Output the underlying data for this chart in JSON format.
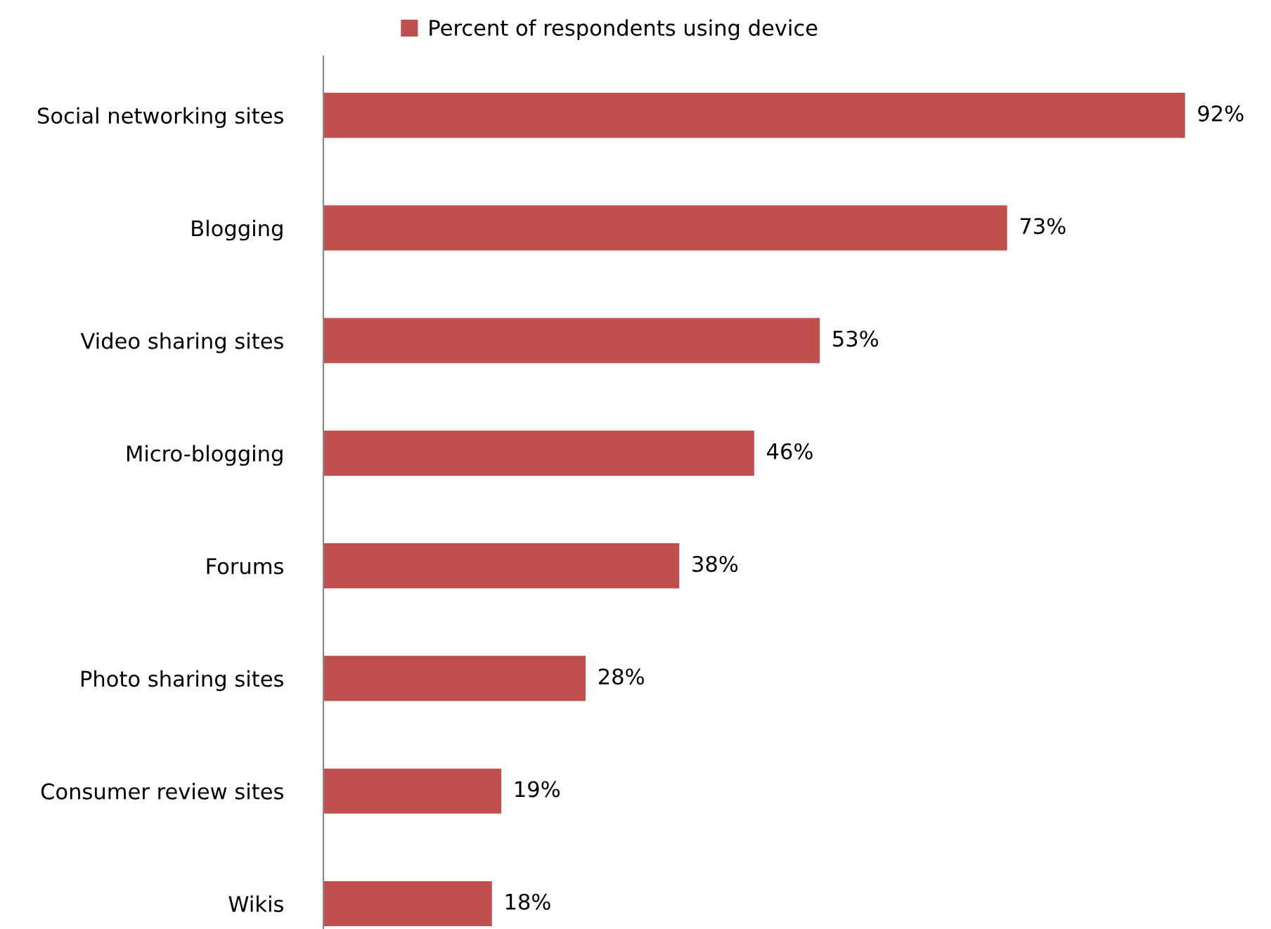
{
  "chart_data": {
    "type": "bar",
    "orientation": "horizontal",
    "categories": [
      "Social networking sites",
      "Blogging",
      "Video sharing sites",
      "Micro-blogging",
      "Forums",
      "Photo sharing sites",
      "Consumer review sites",
      "Wikis"
    ],
    "series": [
      {
        "name": "Percent of respondents using device",
        "color": "#c0504d",
        "values": [
          92,
          73,
          53,
          46,
          38,
          28,
          19,
          18
        ],
        "value_labels": [
          "92%",
          "73%",
          "53%",
          "46%",
          "38%",
          "28%",
          "19%",
          "18%"
        ]
      }
    ],
    "tick_labels": "y",
    "legend": "top",
    "grid": false
  }
}
